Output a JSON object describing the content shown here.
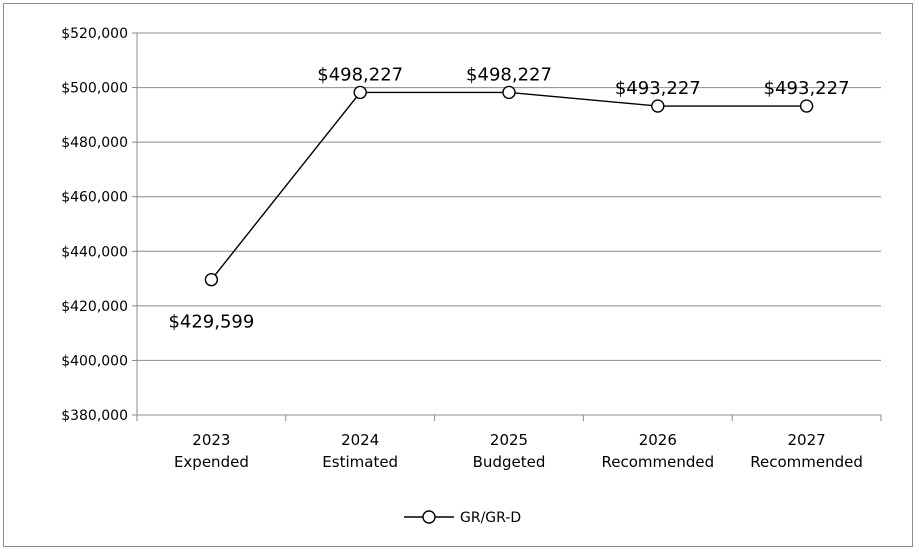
{
  "chart_data": {
    "type": "line",
    "title": "",
    "xlabel": "",
    "ylabel": "",
    "categories": [
      [
        "2023",
        "Expended"
      ],
      [
        "2024",
        "Estimated"
      ],
      [
        "2025",
        "Budgeted"
      ],
      [
        "2026",
        "Recommended"
      ],
      [
        "2027",
        "Recommended"
      ]
    ],
    "series": [
      {
        "name": "GR/GR-D",
        "values": [
          429599,
          498227,
          498227,
          493227,
          493227
        ],
        "labels": [
          "$429,599",
          "$498,227",
          "$498,227",
          "$493,227",
          "$493,227"
        ],
        "color": "#000000",
        "marker": "open-circle"
      }
    ],
    "ylim": [
      380000,
      520000
    ],
    "yticks": [
      380000,
      400000,
      420000,
      440000,
      460000,
      480000,
      500000,
      520000
    ],
    "ytick_labels": [
      "$380,000",
      "$400,000",
      "$420,000",
      "$440,000",
      "$460,000",
      "$480,000",
      "$500,000",
      "$520,000"
    ],
    "grid": true,
    "legend_position": "bottom"
  }
}
